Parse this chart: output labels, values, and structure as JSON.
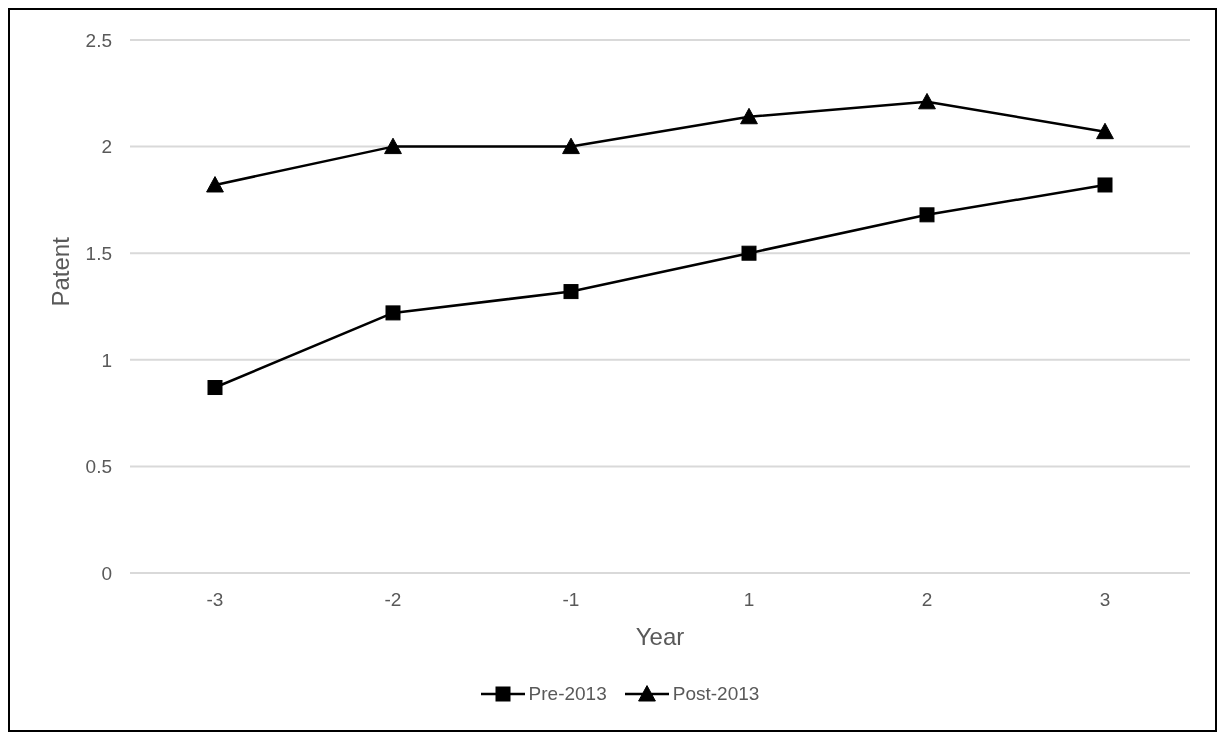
{
  "chart_data": {
    "type": "line",
    "xlabel": "Year",
    "ylabel": "Patent",
    "categories": [
      "-3",
      "-2",
      "-1",
      "1",
      "2",
      "3"
    ],
    "series": [
      {
        "name": "Pre-2013",
        "color": "#000000",
        "marker": "square",
        "values": [
          0.87,
          1.22,
          1.32,
          1.5,
          1.68,
          1.82
        ]
      },
      {
        "name": "Post-2013",
        "color": "#000000",
        "marker": "triangle",
        "values": [
          1.82,
          2.0,
          2.0,
          2.14,
          2.21,
          2.07
        ]
      }
    ],
    "ylim": [
      0,
      2.5
    ],
    "yticks": [
      0,
      0.5,
      1,
      1.5,
      2,
      2.5
    ],
    "grid": "y",
    "legend": "bottom",
    "line_style": "solid"
  }
}
